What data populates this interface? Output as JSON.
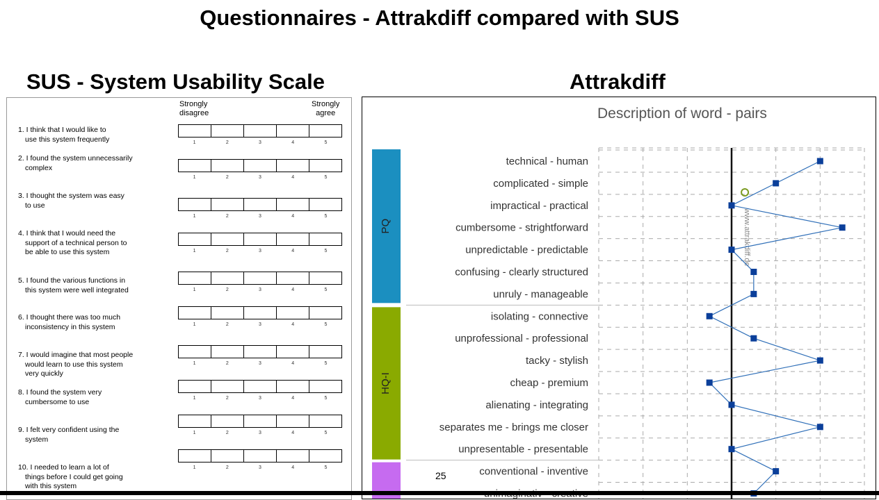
{
  "slide_title": "Questionnaires - Attrakdiff compared with SUS",
  "sus": {
    "title": "SUS - System Usability Scale",
    "header_left": "Strongly\ndisagree",
    "header_right": "Strongly\nagree",
    "scale_numbers": [
      "1",
      "2",
      "3",
      "4",
      "5"
    ],
    "questions": [
      "1. I think that I would like to\n   use this system frequently",
      "2. I found the system unnecessarily\n   complex",
      "3. I thought the system was easy\n   to use",
      "4. I think that I would need the\n   support of a technical person to\n   be able to use this system",
      "5. I found the various functions in\n   this system were well integrated",
      "6. I thought there was too much\n   inconsistency in this system",
      "7. I would imagine that most people\n   would learn to use this system\n   very quickly",
      "8. I found the system very\n   cumbersome to use",
      "9. I felt very confident using the\n   system",
      "10. I needed to learn a lot of\n   things before I could get going\n   with this system"
    ]
  },
  "attrakdiff": {
    "title": "Attrakdiff",
    "watermark": "www.attrakdiff.de"
  },
  "chart_data": {
    "type": "line",
    "title": "Description of word - pairs",
    "x_range": [
      -3,
      3
    ],
    "groups": [
      {
        "name": "PQ",
        "color": "#1b8fc0",
        "count": 7
      },
      {
        "name": "HQ-I",
        "color": "#8aaa00",
        "count": 7
      },
      {
        "name": "",
        "color": "#c66bf0",
        "count": 2
      }
    ],
    "pairs": [
      "technical - human",
      "complicated - simple",
      "impractical - practical",
      "cumbersome - strightforward",
      "unpredictable - predictable",
      "confusing - clearly structured",
      "unruly - manageable",
      "isolating - connective",
      "unprofessional - professional",
      "tacky - stylish",
      "cheap - premium",
      "alienating - integrating",
      "separates me - brings me closer",
      "unpresentable - presentable",
      "conventional - inventive",
      "unimaginativ - creative"
    ],
    "values": [
      2,
      1,
      0,
      2.5,
      0,
      0.5,
      0.5,
      -0.5,
      0.5,
      2,
      -0.5,
      0,
      2,
      0,
      1,
      0.5
    ],
    "colors": {
      "line": "#2f6fb8",
      "marker": "#0b3f9a"
    }
  },
  "page_number": "25"
}
